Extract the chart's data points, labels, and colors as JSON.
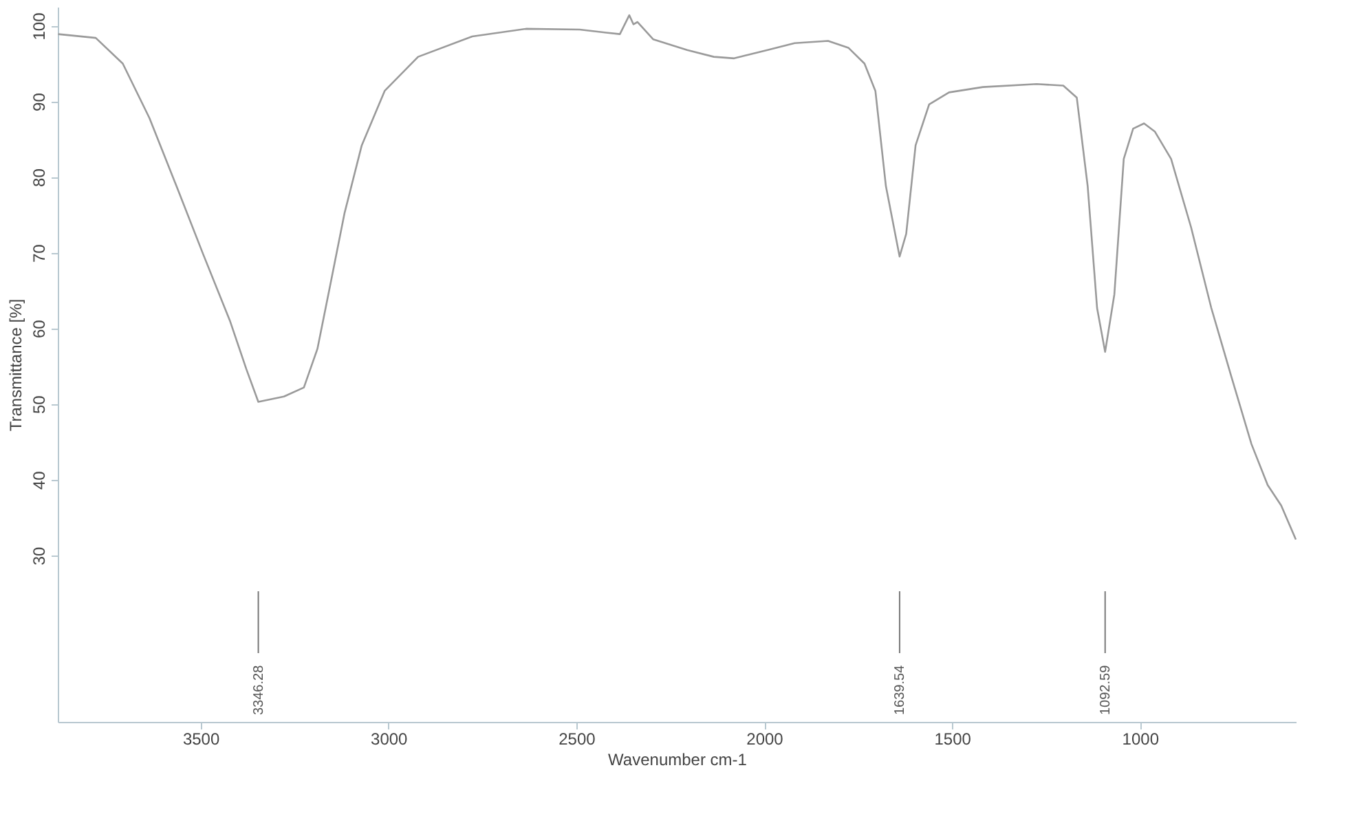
{
  "chart_data": {
    "type": "line",
    "xlabel": "Wavenumber cm-1",
    "ylabel": "Transmittance [%]",
    "x": [
      3879,
      3779,
      3707,
      3636,
      3564,
      3493,
      3421,
      3378,
      3346.28,
      3278,
      3225,
      3189,
      3153,
      3117,
      3071,
      3010,
      2921,
      2777,
      2634,
      2491,
      2420,
      2384,
      2359,
      2348,
      2337,
      2295,
      2205,
      2134,
      2080,
      1991,
      1919,
      1830,
      1776,
      1733,
      1704,
      1676,
      1639.54,
      1622,
      1597,
      1561,
      1508,
      1418,
      1275,
      1204,
      1168,
      1139,
      1114,
      1092.59,
      1068,
      1043,
      1018,
      989,
      960,
      917,
      864,
      810,
      757,
      703,
      660,
      624,
      585
    ],
    "series": [
      {
        "color": "#9a9a9a",
        "values": [
          98.9,
          98.4,
          95.0,
          87.8,
          78.8,
          69.8,
          60.9,
          54.6,
          50.3,
          51.0,
          52.2,
          57.3,
          66.2,
          75.2,
          84.2,
          91.4,
          95.9,
          98.6,
          99.6,
          99.5,
          99.1,
          98.9,
          101.4,
          100.2,
          100.5,
          98.2,
          96.8,
          95.9,
          95.7,
          96.8,
          97.7,
          98.0,
          97.1,
          95.0,
          91.4,
          78.8,
          69.5,
          72.5,
          84.2,
          89.6,
          91.2,
          91.9,
          92.3,
          92.1,
          90.5,
          78.8,
          62.7,
          56.9,
          64.5,
          82.4,
          86.4,
          87.1,
          86.0,
          82.4,
          73.4,
          62.7,
          53.7,
          44.7,
          39.3,
          36.6,
          32.1
        ]
      }
    ],
    "xlim": [
      3880,
      585
    ],
    "ylim": [
      8,
      102.5
    ],
    "xticks": [
      3500,
      3000,
      2500,
      2000,
      1500,
      1000
    ],
    "yticks": [
      30,
      40,
      50,
      60,
      70,
      80,
      90,
      100
    ],
    "ref_lines": [
      {
        "axis": "x",
        "value": 3346.28,
        "label": "3346.28"
      },
      {
        "axis": "x",
        "value": 1639.54,
        "label": "1639.54"
      },
      {
        "axis": "x",
        "value": 1092.59,
        "label": "1092.59"
      }
    ],
    "grid": false,
    "marker": "none",
    "line_style": "solid"
  }
}
